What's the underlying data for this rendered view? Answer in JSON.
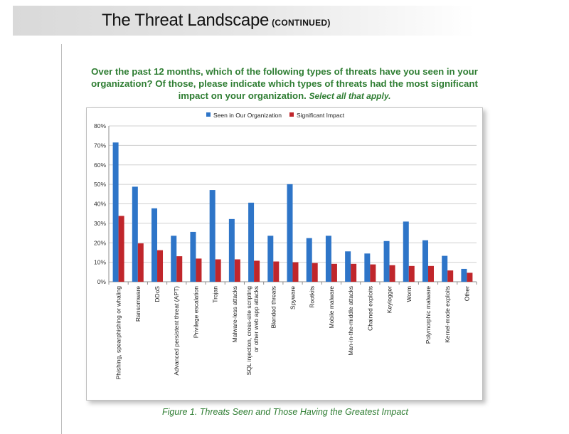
{
  "header": {
    "title": "The Threat Landscape",
    "subtitle": "(CONTINUED)"
  },
  "question": {
    "text": "Over the past 12 months, which of the following types of threats have you seen in your organization? Of those, please indicate which types of threats had the most significant impact on your organization.",
    "hint": "Select all that apply."
  },
  "caption": "Figure 1. Threats Seen and Those Having the Greatest Impact",
  "colors": {
    "seen": "#2e75c8",
    "impact": "#c0262b",
    "title_green": "#2e7d32"
  },
  "chart_data": {
    "type": "bar",
    "categories": [
      "Phishing, spearphishing or whaling",
      "Ransomware",
      "DDoS",
      "Advanced persistent threat (APT)",
      "Privilege escalation",
      "Trojan",
      "Malware-less attacks",
      "SQL injection, cross-site scripting or other web app attacks",
      "Blended threats",
      "Spyware",
      "Rootkits",
      "Mobile malware",
      "Man-in-the-middle attacks",
      "Chained exploits",
      "Keylogger",
      "Worm",
      "Polymorphic malware",
      "Kernel-mode exploits",
      "Other"
    ],
    "series": [
      {
        "name": "Seen in Our Organization",
        "values": [
          71.5,
          48.8,
          37.7,
          23.6,
          25.6,
          47.1,
          32.2,
          40.6,
          23.6,
          50.1,
          22.4,
          23.6,
          15.6,
          14.5,
          20.9,
          30.9,
          21.3,
          13.3,
          6.6
        ]
      },
      {
        "name": "Significant Impact",
        "values": [
          33.8,
          19.7,
          16.2,
          13.1,
          11.9,
          11.5,
          11.5,
          10.8,
          10.4,
          10.0,
          9.6,
          9.2,
          9.2,
          8.9,
          8.5,
          8.1,
          8.1,
          5.8,
          4.6
        ]
      }
    ],
    "yticks": [
      "0%",
      "10%",
      "20%",
      "30%",
      "40%",
      "50%",
      "60%",
      "70%",
      "80%"
    ],
    "ylim": [
      0,
      80
    ],
    "grid": true,
    "legend": "top-center"
  }
}
